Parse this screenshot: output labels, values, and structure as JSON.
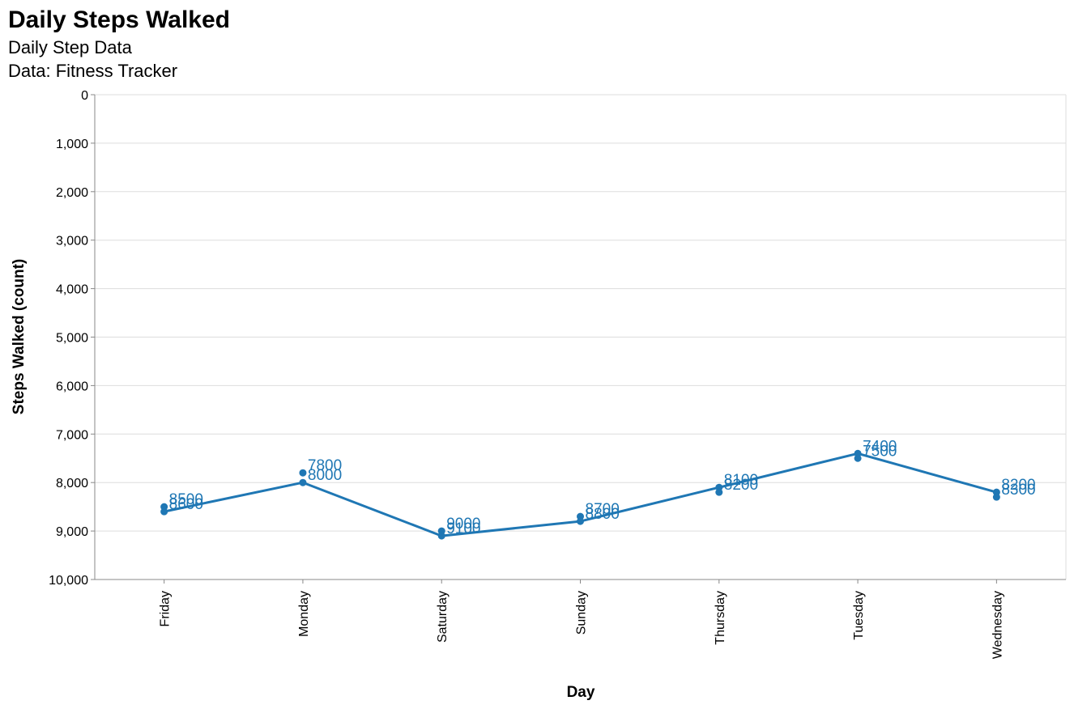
{
  "chart_data": {
    "type": "line",
    "title": "Daily Steps Walked",
    "subtitle": [
      "Daily Step Data",
      "Data: Fitness Tracker"
    ],
    "xlabel": "Day",
    "ylabel": "Steps Walked (count)",
    "categories": [
      "Friday",
      "Monday",
      "Saturday",
      "Sunday",
      "Thursday",
      "Tuesday",
      "Wednesday"
    ],
    "ylim": [
      0,
      10000
    ],
    "y_reversed": true,
    "y_ticks": [
      "0",
      "1,000",
      "2,000",
      "3,000",
      "4,000",
      "5,000",
      "6,000",
      "7,000",
      "8,000",
      "9,000",
      "10,000"
    ],
    "grid": true,
    "color": "#1f77b4",
    "points": [
      {
        "x": "Friday",
        "y": 8500
      },
      {
        "x": "Friday",
        "y": 8600
      },
      {
        "x": "Monday",
        "y": 7800
      },
      {
        "x": "Monday",
        "y": 8000
      },
      {
        "x": "Saturday",
        "y": 9000
      },
      {
        "x": "Saturday",
        "y": 9100
      },
      {
        "x": "Sunday",
        "y": 8700
      },
      {
        "x": "Sunday",
        "y": 8800
      },
      {
        "x": "Thursday",
        "y": 8100
      },
      {
        "x": "Thursday",
        "y": 8200
      },
      {
        "x": "Tuesday",
        "y": 7400
      },
      {
        "x": "Tuesday",
        "y": 7500
      },
      {
        "x": "Wednesday",
        "y": 8200
      },
      {
        "x": "Wednesday",
        "y": 8300
      }
    ],
    "line_path": [
      {
        "x": "Friday",
        "y": 8600
      },
      {
        "x": "Monday",
        "y": 8000
      },
      {
        "x": "Saturday",
        "y": 9100
      },
      {
        "x": "Sunday",
        "y": 8800
      },
      {
        "x": "Thursday",
        "y": 8100
      },
      {
        "x": "Tuesday",
        "y": 7400
      },
      {
        "x": "Wednesday",
        "y": 8200
      }
    ]
  }
}
